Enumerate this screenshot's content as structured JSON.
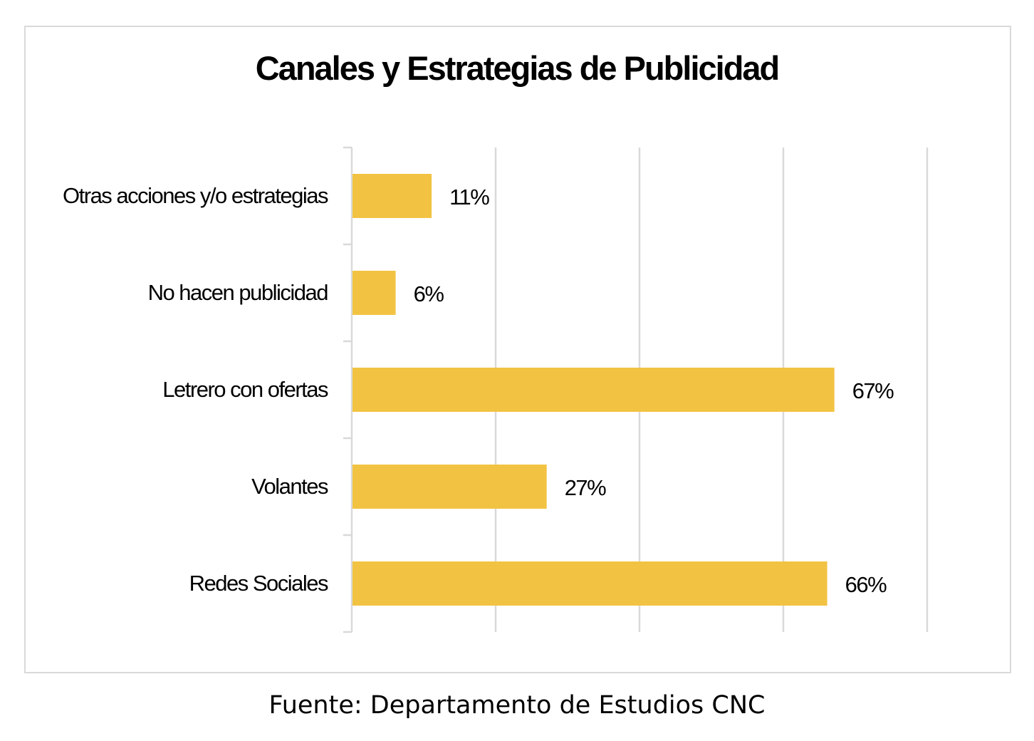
{
  "chart_data": {
    "type": "bar",
    "orientation": "horizontal",
    "title": "Canales y Estrategias de Publicidad",
    "categories": [
      "Otras acciones y/o estrategias",
      "No hacen publicidad",
      "Letrero con ofertas",
      "Volantes",
      "Redes Sociales"
    ],
    "values": [
      11,
      6,
      67,
      27,
      66
    ],
    "value_labels": [
      "11%",
      "6%",
      "67%",
      "27%",
      "66%"
    ],
    "value_unit": "%",
    "xlim": [
      0,
      80
    ],
    "grid": true,
    "legend": "none",
    "bar_color": "#F2C343",
    "grid_color": "#d9d9d9"
  },
  "caption": "Fuente: Departamento de Estudios CNC"
}
